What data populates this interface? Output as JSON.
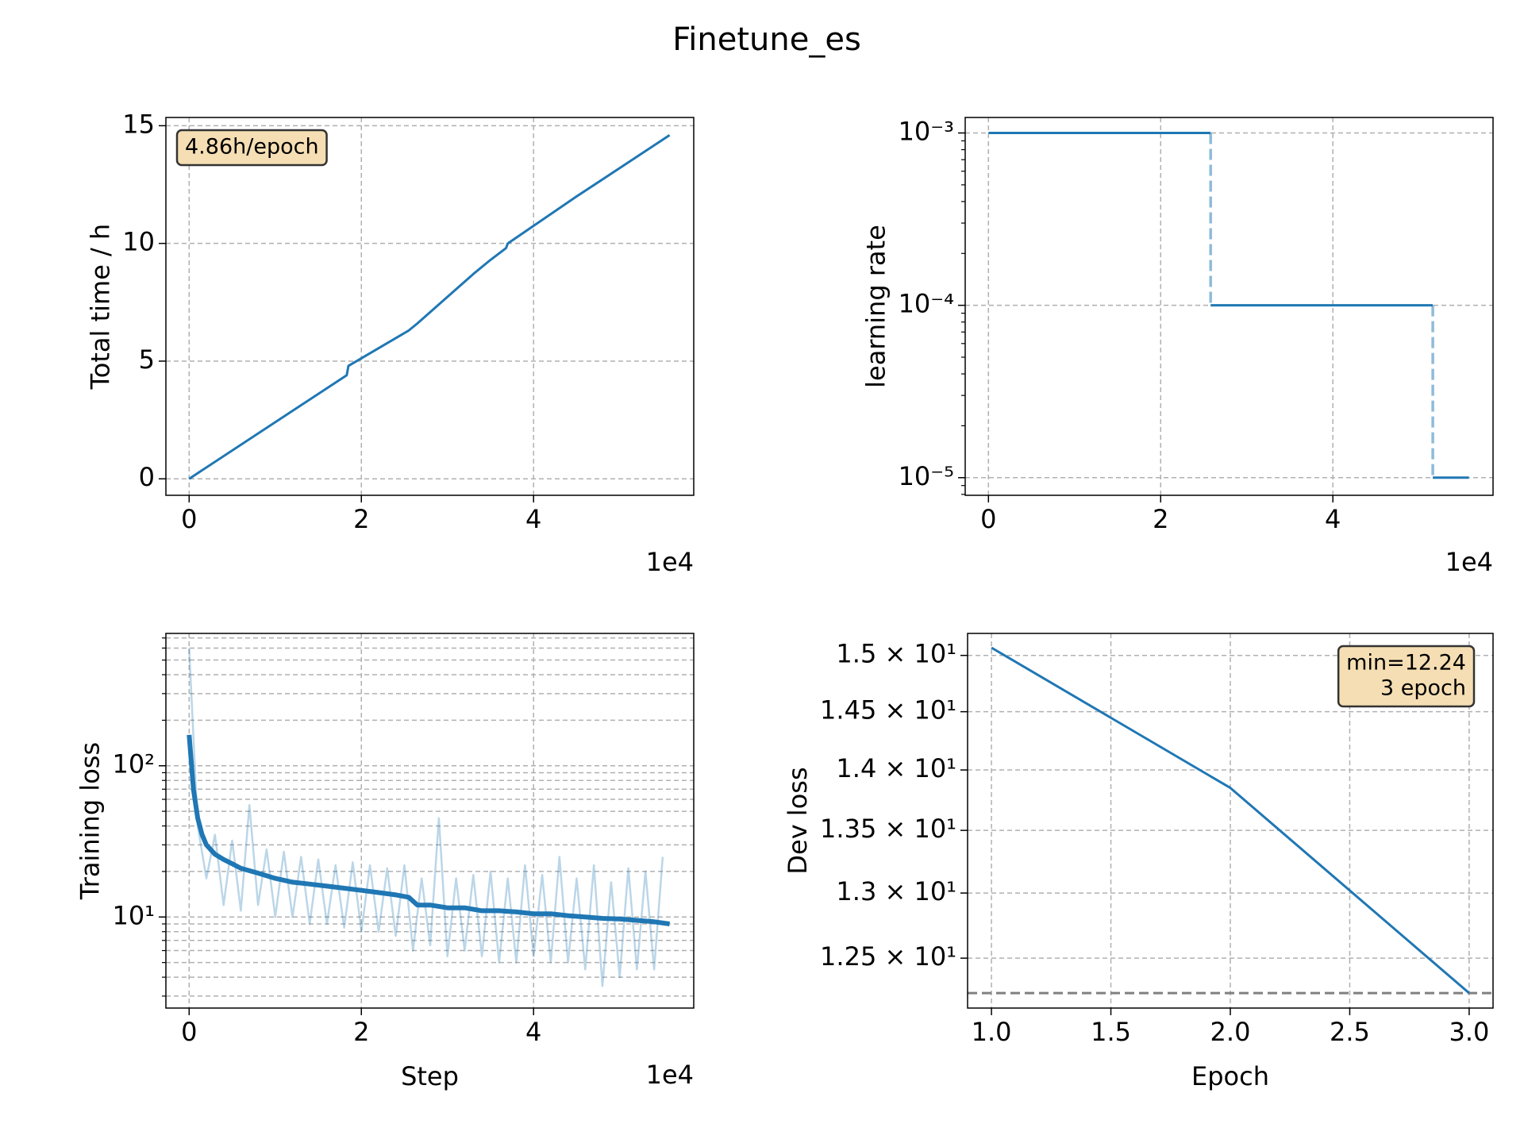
{
  "title": "Finetune_es",
  "chart_data": [
    {
      "type": "line",
      "ylabel": "Total time / h",
      "x_offset_label": "1e4",
      "xlim": [
        -2700,
        58600
      ],
      "ylim": [
        -0.7,
        15.35
      ],
      "xticks": [
        0,
        {
          "value": 20000,
          "label": "2"
        },
        {
          "value": 40000,
          "label": "4"
        }
      ],
      "yticks": [
        0,
        5,
        10,
        15
      ],
      "grid": true,
      "annotation": [
        "4.86h/epoch"
      ],
      "annotation_loc": "upper left",
      "series": [
        {
          "color": "#1f77b4",
          "alpha": 1,
          "x": [
            0,
            18300,
            18400,
            18500,
            25500,
            26500,
            33000,
            35000,
            36800,
            37000,
            45000,
            50000,
            55800
          ],
          "values": [
            0,
            4.4,
            4.6,
            4.8,
            6.3,
            6.6,
            8.7,
            9.3,
            9.8,
            10.0,
            12.0,
            13.2,
            14.6
          ]
        }
      ]
    },
    {
      "type": "line",
      "ylabel": "learning rate",
      "x_offset_label": "1e4",
      "yscale": "log",
      "xlim": [
        -2700,
        58600
      ],
      "ylim": [
        7.9e-06,
        0.00123
      ],
      "xticks": [
        0,
        {
          "value": 20000,
          "label": "2"
        },
        {
          "value": 40000,
          "label": "4"
        }
      ],
      "yticks": [
        {
          "value": 1e-05,
          "label": "10⁻⁵"
        },
        {
          "value": 0.0001,
          "label": "10⁻⁴"
        },
        {
          "value": 0.001,
          "label": "10⁻³"
        }
      ],
      "yticks_minor": [
        8e-06,
        9e-06,
        2e-05,
        3e-05,
        4e-05,
        5e-05,
        6e-05,
        7e-05,
        8e-05,
        9e-05,
        0.0002,
        0.0003,
        0.0004,
        0.0005,
        0.0006,
        0.0007,
        0.0008,
        0.0009
      ],
      "grid": true,
      "series": [
        {
          "color": "#1f77b4",
          "alpha": 1,
          "x": [
            0,
            25800,
            25800,
            25800,
            51600,
            51600,
            51600,
            55800
          ],
          "values": [
            0.001,
            0.001,
            null,
            0.0001,
            0.0001,
            null,
            1e-05,
            1e-05
          ]
        },
        {
          "color": "#1f77b4",
          "alpha": 0.5,
          "linestyle": "dashed",
          "x": [
            25800,
            25800,
            25800,
            51600,
            51600
          ],
          "values": [
            0.001,
            0.0001,
            null,
            0.0001,
            1e-05
          ]
        }
      ]
    },
    {
      "type": "line",
      "xlabel": "Step",
      "ylabel": "Training loss",
      "x_offset_label": "1e4",
      "yscale": "log",
      "xlim": [
        -2700,
        58600
      ],
      "ylim": [
        2.5,
        750
      ],
      "xticks": [
        0,
        {
          "value": 20000,
          "label": "2"
        },
        {
          "value": 40000,
          "label": "4"
        }
      ],
      "yticks": [
        {
          "value": 10,
          "label": "10¹"
        },
        {
          "value": 100,
          "label": "10²"
        }
      ],
      "yticks_minor": [
        3,
        4,
        5,
        6,
        7,
        8,
        9,
        20,
        30,
        40,
        50,
        60,
        70,
        80,
        90,
        200,
        300,
        400,
        500,
        600,
        700
      ],
      "grid": true,
      "minor_grid": true,
      "series": [
        {
          "color": "#1f77b4",
          "alpha": 0.3,
          "x": [
            0,
            1000,
            2000,
            3000,
            4000,
            5000,
            6000,
            7000,
            8000,
            9000,
            10000,
            11000,
            12000,
            13000,
            14000,
            15000,
            16000,
            17000,
            18000,
            19000,
            20000,
            21000,
            22000,
            23000,
            24000,
            25000,
            26000,
            27000,
            28000,
            29000,
            30000,
            31000,
            32000,
            33000,
            34000,
            35000,
            36000,
            37000,
            38000,
            39000,
            40000,
            41000,
            42000,
            43000,
            44000,
            45000,
            46000,
            47000,
            48000,
            49000,
            50000,
            51000,
            52000,
            53000,
            54000,
            55000
          ],
          "values": [
            600,
            40,
            18,
            35,
            12,
            32,
            11,
            55,
            12,
            28,
            10,
            27,
            10,
            25,
            9,
            24,
            9,
            22,
            8.5,
            23,
            8,
            22,
            8,
            21,
            7.5,
            22,
            6,
            18,
            6.5,
            45,
            5.5,
            18,
            6,
            19,
            5.5,
            20,
            5,
            18,
            5,
            22,
            5.5,
            19,
            5,
            25,
            5,
            18,
            4.5,
            22,
            3.5,
            17,
            4,
            21,
            4.5,
            20,
            4.5,
            25
          ]
        },
        {
          "color": "#1f77b4",
          "alpha": 1,
          "x": [
            0,
            500,
            1000,
            1500,
            2000,
            3000,
            4000,
            5000,
            6000,
            8000,
            10000,
            12000,
            14000,
            16000,
            18000,
            20000,
            22000,
            24000,
            25500,
            26500,
            28000,
            30000,
            32000,
            34000,
            36000,
            38000,
            40000,
            42000,
            44000,
            46000,
            48000,
            50000,
            52000,
            54000,
            55800
          ],
          "values": [
            160,
            70,
            45,
            35,
            30,
            26,
            24,
            22.5,
            21,
            19.5,
            18,
            17,
            16.5,
            16,
            15.5,
            15,
            14.5,
            14,
            13.5,
            12,
            12,
            11.5,
            11.5,
            11,
            11,
            10.8,
            10.5,
            10.5,
            10.2,
            10,
            9.8,
            9.7,
            9.5,
            9.3,
            9
          ]
        }
      ]
    },
    {
      "type": "line",
      "xlabel": "Epoch",
      "ylabel": "Dev loss",
      "yscale": "log",
      "xlim": [
        0.9,
        3.1
      ],
      "ylim": [
        12.13,
        15.2
      ],
      "xticks": [
        {
          "value": 1,
          "label": "1.0"
        },
        1.5,
        {
          "value": 2,
          "label": "2.0"
        },
        2.5,
        {
          "value": 3,
          "label": "3.0"
        }
      ],
      "yticks": [
        {
          "value": 12.5,
          "label": "1.25 × 10¹"
        },
        {
          "value": 13,
          "label": "1.3 × 10¹"
        },
        {
          "value": 13.5,
          "label": "1.35 × 10¹"
        },
        {
          "value": 14,
          "label": "1.4 × 10¹"
        },
        {
          "value": 14.5,
          "label": "1.45 × 10¹"
        },
        {
          "value": 15,
          "label": "1.5 × 10¹"
        }
      ],
      "grid": true,
      "hline": 12.24,
      "hline_color": "#808080",
      "annotation": [
        "min=12.24",
        "3 epoch"
      ],
      "annotation_loc": "upper right",
      "series": [
        {
          "color": "#1f77b4",
          "alpha": 1,
          "x": [
            1,
            2,
            3
          ],
          "values": [
            15.07,
            13.85,
            12.24
          ]
        }
      ]
    }
  ]
}
